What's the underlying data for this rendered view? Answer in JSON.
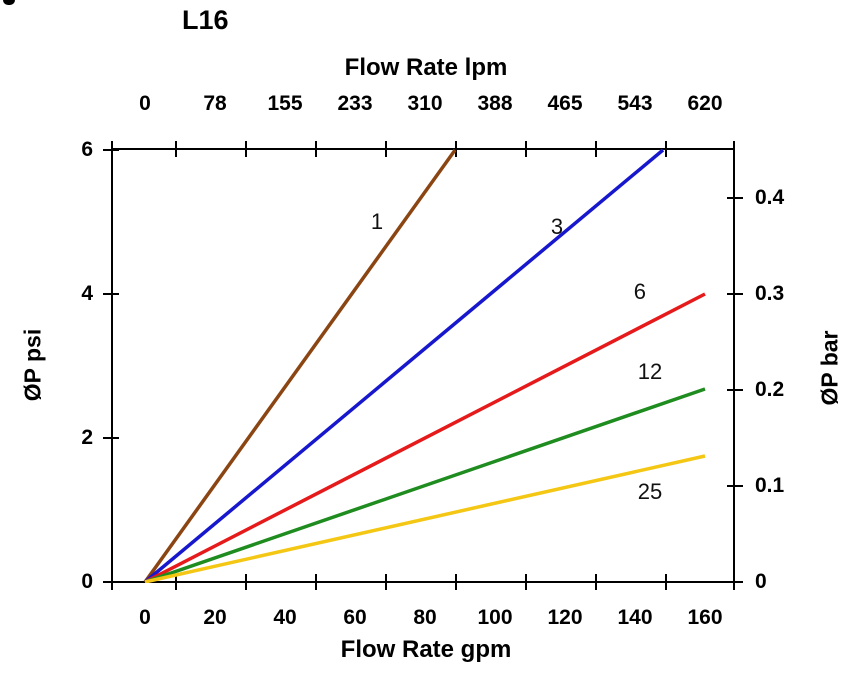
{
  "title": "L16",
  "chart_data": {
    "type": "line",
    "title": "L16",
    "x_axis_top": {
      "label": "Flow Rate lpm",
      "tick_labels": [
        "0",
        "78",
        "155",
        "233",
        "310",
        "388",
        "465",
        "543",
        "620"
      ]
    },
    "x_axis_bottom": {
      "label": "Flow Rate gpm",
      "tick_labels": [
        "0",
        "20",
        "40",
        "60",
        "80",
        "100",
        "120",
        "140",
        "160"
      ],
      "range": [
        0,
        160
      ]
    },
    "y_axis_left": {
      "label": "ØP psi",
      "tick_labels": [
        "0",
        "2",
        "4",
        "6"
      ],
      "tick_values": [
        0,
        2,
        4,
        6
      ],
      "range": [
        0,
        6
      ]
    },
    "y_axis_right": {
      "label": "ØP bar",
      "tick_labels": [
        "0",
        "0.1",
        "0.2",
        "0.3",
        "0.4"
      ],
      "tick_values": [
        0,
        0.1,
        0.2,
        0.3,
        0.4
      ],
      "range": [
        0,
        0.45
      ]
    },
    "axis_color": "#000000",
    "grid": false,
    "legend": "inline-labels",
    "series": [
      {
        "name": "1",
        "color": "#8B4513",
        "points": [
          [
            0,
            0
          ],
          [
            88.6,
            6.0
          ]
        ],
        "label_at": [
          66.3,
          5.0
        ]
      },
      {
        "name": "3",
        "color": "#1717CE",
        "points": [
          [
            0,
            0
          ],
          [
            148.0,
            6.0
          ]
        ],
        "label_at": [
          117.7,
          4.93
        ]
      },
      {
        "name": "6",
        "color": "#E61A1A",
        "points": [
          [
            0,
            0
          ],
          [
            160,
            4.0
          ]
        ],
        "label_at": [
          141.4,
          4.03
        ]
      },
      {
        "name": "12",
        "color": "#1F8C1F",
        "points": [
          [
            0,
            0
          ],
          [
            160,
            2.68
          ]
        ],
        "label_at": [
          144.3,
          2.92
        ]
      },
      {
        "name": "25",
        "color": "#F3C714",
        "points": [
          [
            0,
            0
          ],
          [
            160,
            1.75
          ]
        ],
        "label_at": [
          144.3,
          1.25
        ]
      }
    ]
  }
}
